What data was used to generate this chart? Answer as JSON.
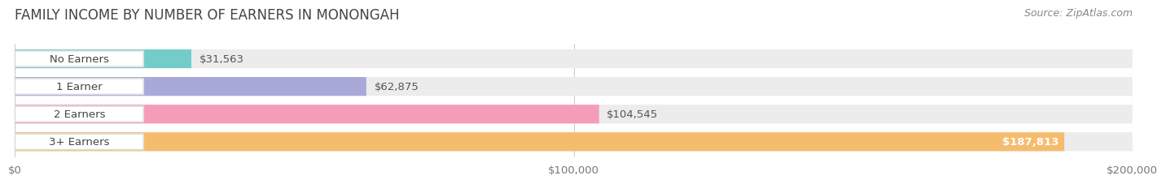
{
  "title": "FAMILY INCOME BY NUMBER OF EARNERS IN MONONGAH",
  "source": "Source: ZipAtlas.com",
  "categories": [
    "No Earners",
    "1 Earner",
    "2 Earners",
    "3+ Earners"
  ],
  "values": [
    31563,
    62875,
    104545,
    187813
  ],
  "labels": [
    "$31,563",
    "$62,875",
    "$104,545",
    "$187,813"
  ],
  "bar_colors": [
    "#72cdc8",
    "#a9a9d9",
    "#f59db8",
    "#f6bc6e"
  ],
  "xlim": [
    0,
    200000
  ],
  "xticks": [
    0,
    100000,
    200000
  ],
  "xtick_labels": [
    "$0",
    "$100,000",
    "$200,000"
  ],
  "background_color": "#ffffff",
  "bar_bg_color": "#ececec",
  "title_fontsize": 12,
  "source_fontsize": 9,
  "label_fontsize": 9.5,
  "tick_fontsize": 9.5,
  "category_fontsize": 9.5,
  "figsize": [
    14.06,
    2.33
  ],
  "dpi": 100
}
